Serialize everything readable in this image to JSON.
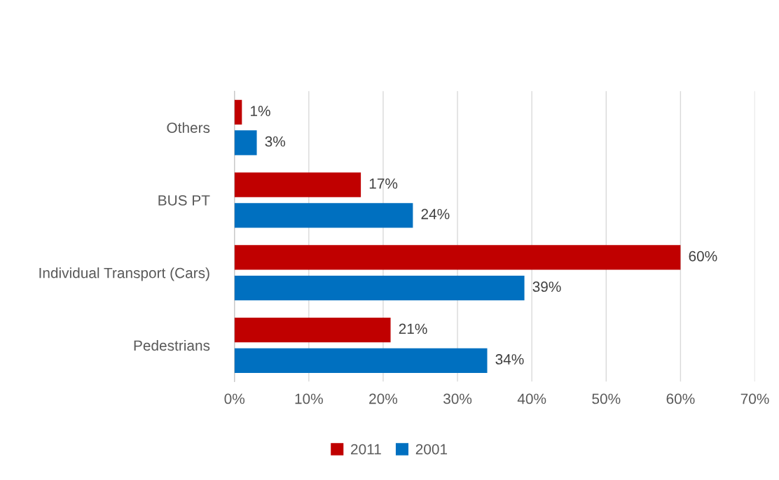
{
  "chart_data": {
    "type": "bar",
    "orientation": "horizontal",
    "categories": [
      "Others",
      "BUS PT",
      "Individual Transport (Cars)",
      "Pedestrians"
    ],
    "series": [
      {
        "name": "2011",
        "color": "#c00000",
        "values": [
          1,
          17,
          60,
          21
        ],
        "value_labels": [
          "1%",
          "17%",
          "60%",
          "21%"
        ]
      },
      {
        "name": "2001",
        "color": "#0070c0",
        "values": [
          3,
          24,
          39,
          34
        ],
        "value_labels": [
          "3%",
          "24%",
          "39%",
          "34%"
        ]
      }
    ],
    "xlim": [
      0,
      70
    ],
    "xticks": [
      {
        "value": 0,
        "label": "0%"
      },
      {
        "value": 10,
        "label": "10%"
      },
      {
        "value": 20,
        "label": "20%"
      },
      {
        "value": 30,
        "label": "30%"
      },
      {
        "value": 40,
        "label": "40%"
      },
      {
        "value": 50,
        "label": "50%"
      },
      {
        "value": 60,
        "label": "60%"
      },
      {
        "value": 70,
        "label": "70%"
      }
    ],
    "grid": "x",
    "legend": "bottom"
  }
}
